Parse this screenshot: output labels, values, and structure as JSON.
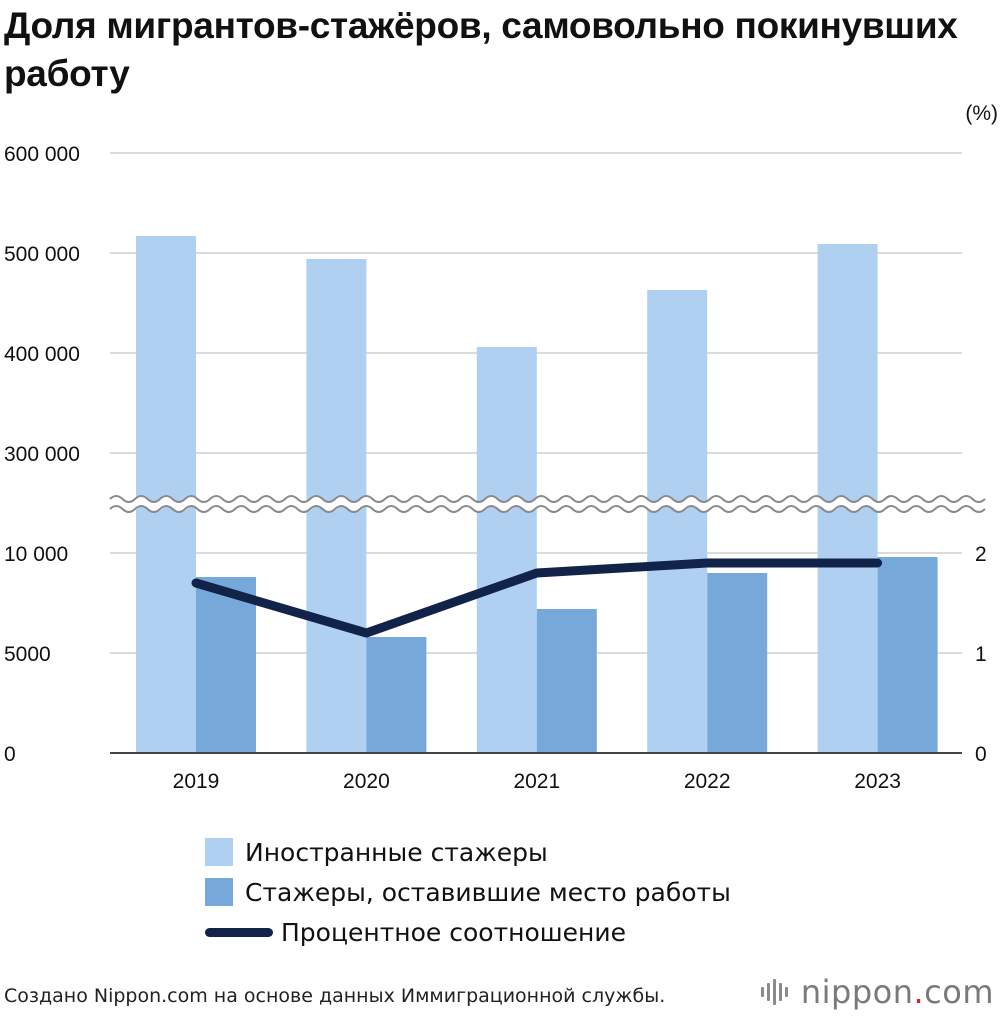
{
  "title": "Доля мигрантов-стажёров, самовольно покинувших работу",
  "chart_data": {
    "type": "bar",
    "title": "Доля мигрантов-стажёров, самовольно покинувших работу",
    "categories": [
      "2019",
      "2020",
      "2021",
      "2022",
      "2023"
    ],
    "series": [
      {
        "name": "Иностранные стажеры",
        "type": "bar",
        "axis": "left-upper",
        "values": [
          517000,
          494000,
          406000,
          463000,
          509000
        ],
        "color": "#b0d0f2"
      },
      {
        "name": "Стажеры, оставившие место работы",
        "type": "bar",
        "axis": "left-lower",
        "values": [
          8800,
          5800,
          7200,
          9000,
          9800
        ],
        "color": "#76a9da"
      },
      {
        "name": "Процентное соотношение",
        "type": "line",
        "axis": "right",
        "values": [
          1.7,
          1.2,
          1.8,
          1.9,
          1.9
        ],
        "color": "#12234a"
      }
    ],
    "left_axis_ticks": [
      "600 000",
      "500 000",
      "400 000",
      "300 000",
      "10 000",
      "5000",
      "0"
    ],
    "left_axis_upper": {
      "ylim": [
        250000,
        600000
      ],
      "ticks": [
        300000,
        400000,
        500000,
        600000
      ]
    },
    "left_axis_lower": {
      "ylim": [
        0,
        10000
      ],
      "ticks": [
        0,
        5000,
        10000
      ]
    },
    "right_axis": {
      "unit_label": "(%)",
      "ylim": [
        0,
        2
      ],
      "ticks": [
        "0",
        "1",
        "2"
      ]
    },
    "axis_break": true,
    "grid": true,
    "legend_position": "bottom-left"
  },
  "legend": [
    {
      "label": "Иностранные стажеры",
      "kind": "box",
      "color": "#b0d0f2"
    },
    {
      "label": "Стажеры, оставившие место работы",
      "kind": "box",
      "color": "#76a9da"
    },
    {
      "label": "Процентное соотношение",
      "kind": "line",
      "color": "#12234a"
    }
  ],
  "source": "Создано Nippon.com на основе данных Иммиграционной службы.",
  "brand": {
    "name": "nippon",
    "dot": ".",
    "suffix": "com"
  }
}
